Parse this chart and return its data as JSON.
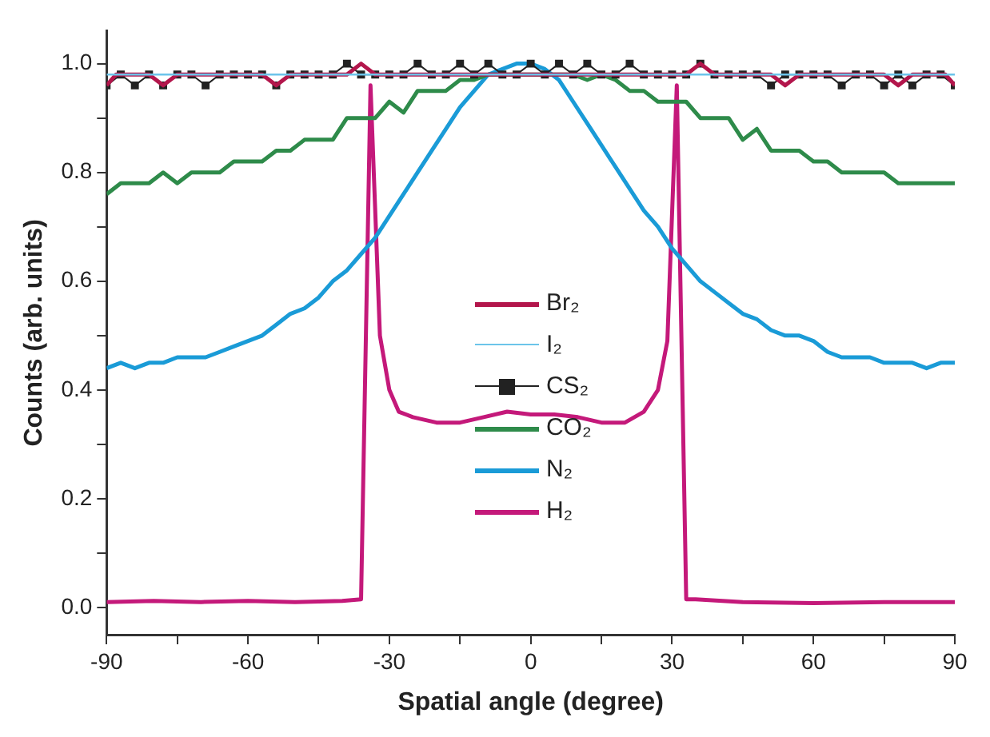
{
  "chart_data": {
    "type": "line",
    "xlabel": "Spatial angle (degree)",
    "ylabel": "Counts (arb. units)",
    "xlim": [
      -90,
      90
    ],
    "ylim": [
      -0.05,
      1.06
    ],
    "xticks": [
      -90,
      {
        "value": -75,
        "label": null
      },
      -60,
      {
        "value": -45,
        "label": null
      },
      -30,
      {
        "value": -15,
        "label": null
      },
      0,
      {
        "value": 15,
        "label": null
      },
      30,
      {
        "value": 45,
        "label": null
      },
      60,
      {
        "value": 75,
        "label": null
      },
      90
    ],
    "yticks": [
      {
        "value": 0,
        "label": "0.0"
      },
      {
        "value": 0.1,
        "label": null
      },
      {
        "value": 0.2,
        "label": "0.2"
      },
      {
        "value": 0.3,
        "label": null
      },
      {
        "value": 0.4,
        "label": "0.4"
      },
      {
        "value": 0.5,
        "label": null
      },
      {
        "value": 0.6,
        "label": "0.6"
      },
      {
        "value": 0.7,
        "label": null
      },
      {
        "value": 0.8,
        "label": "0.8"
      },
      {
        "value": 0.9,
        "label": null
      },
      {
        "value": 1.0,
        "label": "1.0"
      }
    ],
    "grid": false,
    "legend": "center",
    "marker": "none",
    "series": [
      {
        "name": "Br₂",
        "color": "#b3164c",
        "x": [
          -90,
          -88,
          -81,
          -78,
          -75,
          -57,
          -54,
          -51,
          -39,
          -36,
          -33,
          33,
          36,
          39,
          51,
          54,
          57,
          75,
          78,
          81,
          88,
          90
        ],
        "values": [
          0.96,
          0.98,
          0.98,
          0.96,
          0.98,
          0.98,
          0.96,
          0.98,
          0.98,
          1.0,
          0.98,
          0.98,
          1.0,
          0.98,
          0.98,
          0.96,
          0.98,
          0.98,
          0.96,
          0.98,
          0.98,
          0.96
        ]
      },
      {
        "name": "I₂",
        "color": "#6cc4ea",
        "x": [
          -90,
          -60,
          -30,
          0,
          30,
          60,
          90
        ],
        "values": [
          0.98,
          0.98,
          0.98,
          0.98,
          0.98,
          0.98,
          0.98
        ]
      },
      {
        "name": "CS₂",
        "color": "#222222",
        "marker": "square",
        "x": [
          -90,
          -87,
          -84,
          -81,
          -78,
          -75,
          -72,
          -69,
          -66,
          -63,
          -60,
          -57,
          -54,
          -51,
          -48,
          -45,
          -42,
          -39,
          -36,
          -33,
          -30,
          -27,
          -24,
          -21,
          -18,
          -15,
          -12,
          -9,
          -6,
          -3,
          0,
          3,
          6,
          9,
          12,
          15,
          18,
          21,
          24,
          27,
          30,
          33,
          36,
          39,
          42,
          45,
          48,
          51,
          54,
          57,
          60,
          63,
          66,
          69,
          72,
          75,
          78,
          81,
          84,
          87,
          90
        ],
        "values": [
          0.96,
          0.98,
          0.96,
          0.98,
          0.96,
          0.98,
          0.98,
          0.96,
          0.98,
          0.98,
          0.98,
          0.98,
          0.96,
          0.98,
          0.98,
          0.98,
          0.98,
          1.0,
          0.98,
          0.98,
          0.98,
          0.98,
          1.0,
          0.98,
          0.98,
          1.0,
          0.98,
          1.0,
          0.98,
          0.98,
          1.0,
          0.98,
          1.0,
          0.98,
          1.0,
          0.98,
          0.98,
          1.0,
          0.98,
          0.98,
          0.98,
          0.98,
          1.0,
          0.98,
          0.98,
          0.98,
          0.98,
          0.96,
          0.98,
          0.98,
          0.98,
          0.98,
          0.96,
          0.98,
          0.98,
          0.96,
          0.98,
          0.96,
          0.98,
          0.98,
          0.96
        ]
      },
      {
        "name": "CO₂",
        "color": "#2e8b4a",
        "x": [
          -90,
          -87,
          -81,
          -78,
          -75,
          -72,
          -66,
          -63,
          -57,
          -54,
          -51,
          -48,
          -42,
          -39,
          -33,
          -30,
          -27,
          -24,
          -18,
          -15,
          -12,
          -9,
          0,
          9,
          12,
          15,
          18,
          21,
          24,
          27,
          33,
          36,
          42,
          45,
          48,
          51,
          57,
          60,
          63,
          66,
          75,
          78,
          90
        ],
        "values": [
          0.76,
          0.78,
          0.78,
          0.8,
          0.78,
          0.8,
          0.8,
          0.82,
          0.82,
          0.84,
          0.84,
          0.86,
          0.86,
          0.9,
          0.9,
          0.93,
          0.91,
          0.95,
          0.95,
          0.97,
          0.97,
          0.98,
          0.98,
          0.98,
          0.97,
          0.98,
          0.97,
          0.95,
          0.95,
          0.93,
          0.93,
          0.9,
          0.9,
          0.86,
          0.88,
          0.84,
          0.84,
          0.82,
          0.82,
          0.8,
          0.8,
          0.78,
          0.78
        ]
      },
      {
        "name": "N₂",
        "color": "#1a9bd7",
        "x": [
          -90,
          -87,
          -84,
          -81,
          -78,
          -75,
          -69,
          -66,
          -63,
          -60,
          -57,
          -54,
          -51,
          -48,
          -45,
          -42,
          -39,
          -36,
          -33,
          -30,
          -27,
          -24,
          -21,
          -18,
          -15,
          -12,
          -9,
          -6,
          -3,
          0,
          3,
          6,
          9,
          12,
          15,
          18,
          21,
          24,
          27,
          30,
          33,
          36,
          39,
          42,
          45,
          48,
          51,
          54,
          57,
          60,
          63,
          66,
          72,
          75,
          81,
          84,
          87,
          90
        ],
        "values": [
          0.44,
          0.45,
          0.44,
          0.45,
          0.45,
          0.46,
          0.46,
          0.47,
          0.48,
          0.49,
          0.5,
          0.52,
          0.54,
          0.55,
          0.57,
          0.6,
          0.62,
          0.65,
          0.68,
          0.72,
          0.76,
          0.8,
          0.84,
          0.88,
          0.92,
          0.95,
          0.98,
          0.99,
          1.0,
          1.0,
          0.99,
          0.97,
          0.93,
          0.89,
          0.85,
          0.81,
          0.77,
          0.73,
          0.7,
          0.66,
          0.63,
          0.6,
          0.58,
          0.56,
          0.54,
          0.53,
          0.51,
          0.5,
          0.5,
          0.49,
          0.47,
          0.46,
          0.46,
          0.45,
          0.45,
          0.44,
          0.45,
          0.45
        ]
      },
      {
        "name": "H₂",
        "color": "#c4197a",
        "x": [
          -90,
          -80,
          -70,
          -60,
          -50,
          -40,
          -36,
          -34,
          -32,
          -30,
          -28,
          -25,
          -20,
          -15,
          -10,
          -5,
          0,
          5,
          10,
          15,
          20,
          24,
          27,
          29,
          31,
          33,
          35,
          45,
          60,
          75,
          90
        ],
        "values": [
          0.01,
          0.012,
          0.01,
          0.012,
          0.01,
          0.012,
          0.015,
          0.96,
          0.5,
          0.4,
          0.36,
          0.35,
          0.34,
          0.34,
          0.35,
          0.36,
          0.355,
          0.355,
          0.35,
          0.34,
          0.34,
          0.36,
          0.4,
          0.49,
          0.96,
          0.015,
          0.015,
          0.01,
          0.008,
          0.01,
          0.01
        ]
      }
    ]
  }
}
